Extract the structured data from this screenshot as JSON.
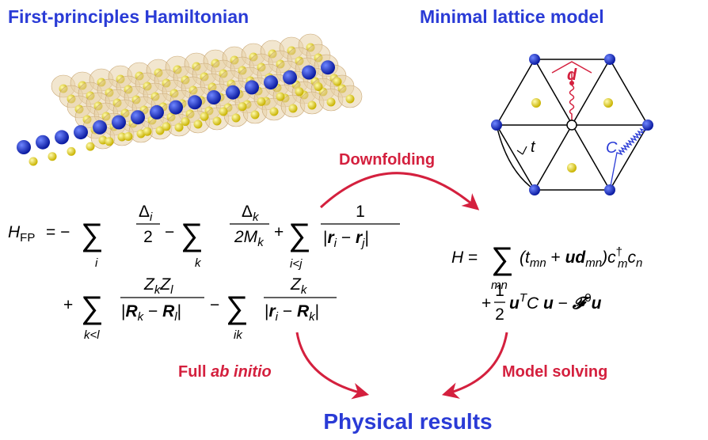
{
  "titles": {
    "left": "First-principles Hamiltonian",
    "right": "Minimal lattice model",
    "bottom": "Physical results"
  },
  "arrows": {
    "downfolding": "Downfolding",
    "full": "Full ",
    "ab_initio": "ab initio",
    "model_solving": "Model solving"
  },
  "lattice": {
    "d": "d",
    "t": "t",
    "C": "C"
  },
  "fp_equation": {
    "line1": [
      "H",
      "FP",
      "= −",
      "∑",
      "i",
      "Δ",
      "i",
      "2",
      "−",
      "∑",
      "k",
      "Δ",
      "k",
      "2M",
      "k",
      "+",
      "∑",
      "i<j",
      "1",
      "|",
      "r",
      "i",
      " − ",
      "r",
      "j",
      "|"
    ],
    "line2": [
      "+",
      "∑",
      "k<l",
      "Z",
      "k",
      "Z",
      "l",
      "|",
      "R",
      "k",
      " − ",
      "R",
      "l",
      "|",
      "−",
      "∑",
      "ik",
      "Z",
      "k",
      "|",
      "r",
      "i",
      " − ",
      "R",
      "k",
      "|"
    ]
  },
  "model_equation": {
    "line1": [
      "H",
      " = ",
      "∑",
      "mn",
      "(t",
      "mn",
      " + ",
      "ud",
      "mn",
      ")c",
      "†",
      "m",
      "c",
      "n"
    ],
    "line2": [
      "+",
      "1",
      "2",
      "u",
      "T",
      "C ",
      "u",
      " − ",
      "𝓕",
      "0",
      "u"
    ]
  }
}
